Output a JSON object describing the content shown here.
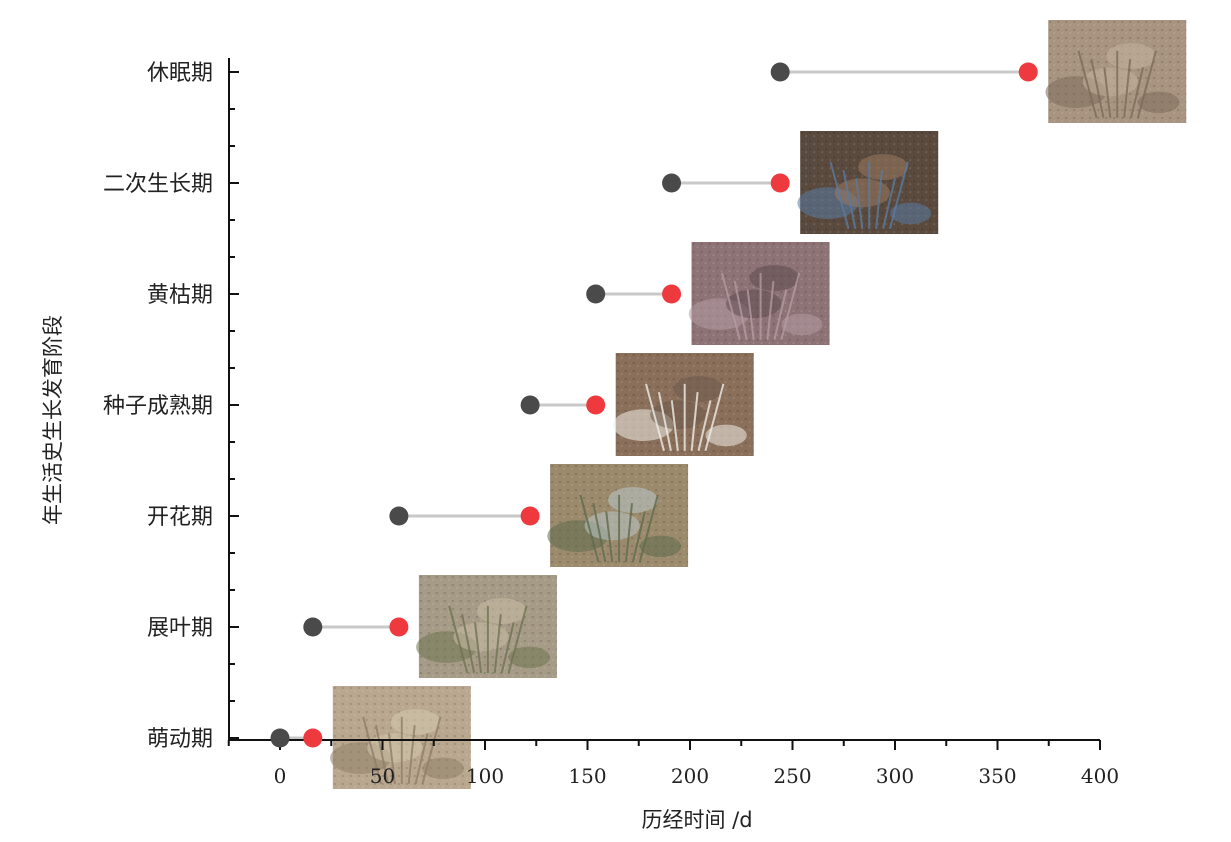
{
  "chart_data": {
    "type": "dumbbell",
    "title": "",
    "xlabel": "历经时间 /d",
    "ylabel": "年生活史生长发育阶段",
    "xlim": [
      -25,
      400
    ],
    "xticks": [
      "0",
      "50",
      "100",
      "150",
      "200",
      "250",
      "300",
      "350",
      "400"
    ],
    "grid": false,
    "legend": "none",
    "colors": {
      "start": "#4a4a4a",
      "end": "#ee3a3e",
      "connector": "#c8c8c8",
      "axis": "#111111"
    },
    "categories": [
      "萌动期",
      "展叶期",
      "开花期",
      "种子成熟期",
      "黄枯期",
      "二次生长期",
      "休眠期"
    ],
    "series": [
      {
        "values_start": [
          0,
          16,
          58,
          122,
          154,
          191,
          244
        ]
      },
      {
        "values_end": [
          16,
          58,
          122,
          154,
          191,
          244,
          365
        ]
      }
    ],
    "photos": [
      {
        "stage": "萌动期",
        "subject": "sprouting bulb in dry soil",
        "palette": [
          "#b9a88f",
          "#8f7f68",
          "#d6c8b0"
        ]
      },
      {
        "stage": "展叶期",
        "subject": "young leaves on sandy soil",
        "palette": [
          "#a69b86",
          "#6f7452",
          "#c8bca6"
        ]
      },
      {
        "stage": "开花期",
        "subject": "blue-green flower head",
        "palette": [
          "#9c8a6d",
          "#5f6b4d",
          "#b8c8c8"
        ]
      },
      {
        "stage": "种子成熟期",
        "subject": "white seed head",
        "palette": [
          "#8a6f5b",
          "#f0eee8",
          "#6d5a4a"
        ]
      },
      {
        "stage": "黄枯期",
        "subject": "withered purple plants",
        "palette": [
          "#8d7376",
          "#b59aa2",
          "#5e4b4e"
        ]
      },
      {
        "stage": "二次生长期",
        "subject": "regrowth in a pot",
        "palette": [
          "#5a4a3e",
          "#5a7aa0",
          "#9a7a60"
        ]
      },
      {
        "stage": "休眠期",
        "subject": "dry tuft on cracked soil",
        "palette": [
          "#a89480",
          "#7d6b5b",
          "#c3b29e"
        ]
      }
    ]
  }
}
